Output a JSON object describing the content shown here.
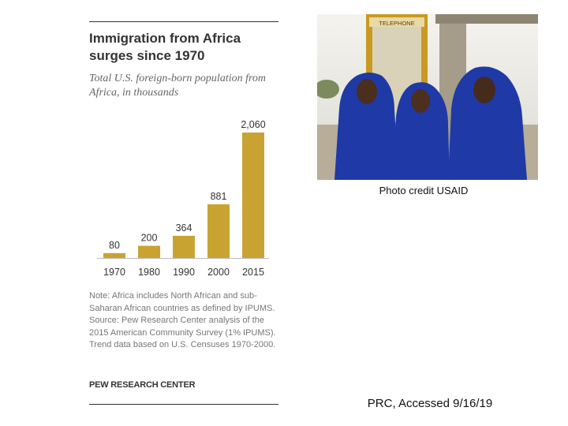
{
  "chart_data": {
    "type": "bar",
    "title": "Immigration from Africa surges since 1970",
    "subtitle": "Total U.S. foreign-born population from Africa, in thousands",
    "categories": [
      "1970",
      "1980",
      "1990",
      "2000",
      "2015"
    ],
    "values": [
      80,
      200,
      364,
      881,
      2060
    ],
    "data_labels": [
      "80",
      "200",
      "364",
      "881",
      "2,060"
    ],
    "bar_color": "#c9a332",
    "grid": false,
    "legend": "none"
  },
  "notes": {
    "note": "Note: Africa includes North African and sub-Saharan African countries as defined by IPUMS.",
    "source": "Source: Pew Research Center analysis of the 2015 American Community Survey (1% IPUMS). Trend data based on U.S. Censuses 1970-2000."
  },
  "brand": "PEW RESEARCH CENTER",
  "photo": {
    "sign_text": "TELEPHONE",
    "credit": "Photo credit USAID",
    "robe_color": "#1f3aa6"
  },
  "citation": "PRC, Accessed 9/16/19"
}
